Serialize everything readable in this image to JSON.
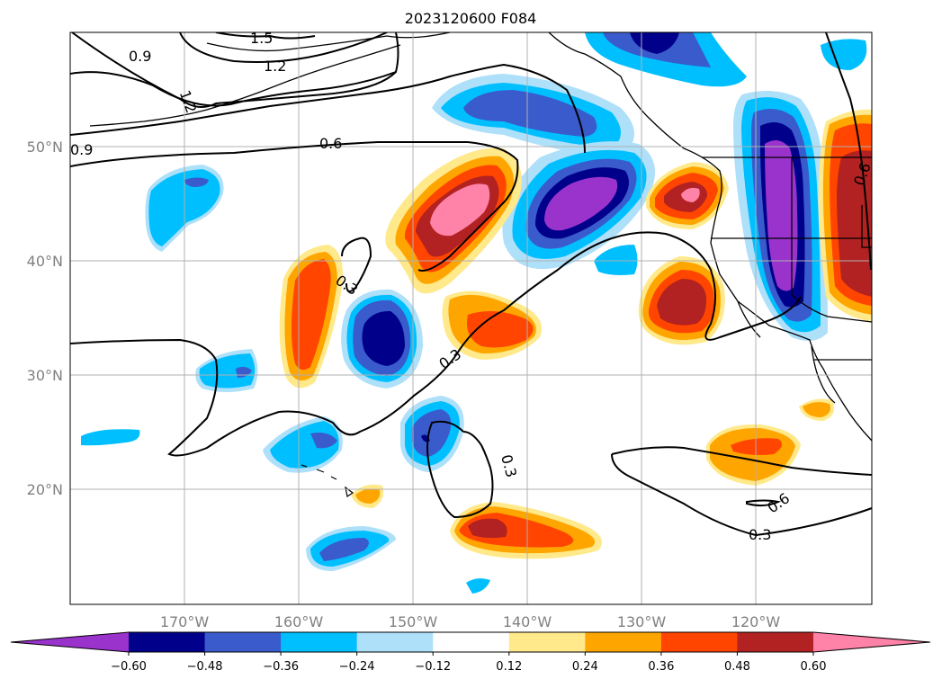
{
  "map": {
    "title": "2023120600 F084",
    "lat_labels": [
      "50°N",
      "40°N",
      "30°N",
      "20°N"
    ],
    "lon_labels": [
      "170°W",
      "160°W",
      "150°W",
      "140°W",
      "130°W",
      "120°W"
    ],
    "contour_labels": [
      "0.9",
      "1.2",
      "1.5",
      "1.2",
      "0.6",
      "0.9",
      "0.3",
      "0.3",
      "0.3",
      "0.6",
      "0.3",
      "0.6"
    ]
  },
  "colorbar": {
    "ticks": [
      "−0.60",
      "−0.48",
      "−0.36",
      "−0.24",
      "−0.12",
      "0.12",
      "0.24",
      "0.36",
      "0.48",
      "0.60"
    ],
    "colors": [
      "#9933cc",
      "#00008b",
      "#3a5bcc",
      "#00bfff",
      "#aee0fa",
      "#ffffff",
      "#ffe98a",
      "#ffa500",
      "#ff4500",
      "#b22222",
      "#ff82a8"
    ]
  },
  "colors": {
    "grid": "#b0b0b0",
    "contour": "#000000"
  }
}
